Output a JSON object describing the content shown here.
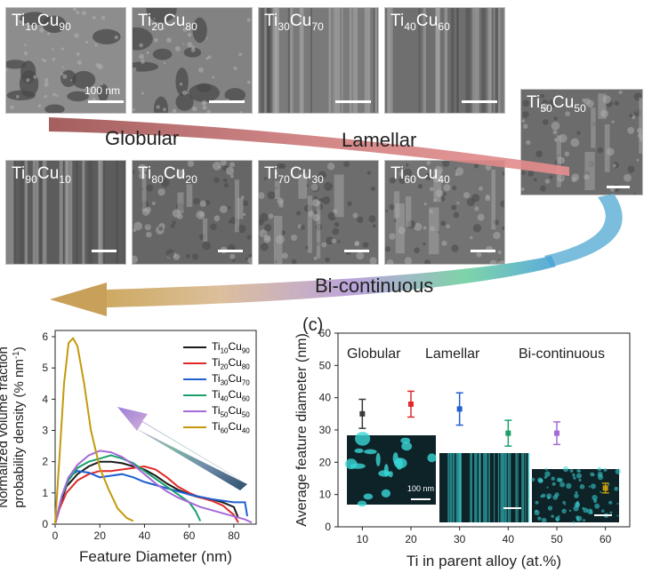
{
  "figure": {
    "tiles_top": [
      {
        "base1": "Ti",
        "sub1": "10",
        "base2": "Cu",
        "sub2": "90",
        "tone": "#8d8d8d"
      },
      {
        "base1": "Ti",
        "sub1": "20",
        "base2": "Cu",
        "sub2": "80",
        "tone": "#828282"
      },
      {
        "base1": "Ti",
        "sub1": "30",
        "base2": "Cu",
        "sub2": "70",
        "tone": "#7a7a7a"
      },
      {
        "base1": "Ti",
        "sub1": "40",
        "base2": "Cu",
        "sub2": "60",
        "tone": "#6f6f6f"
      }
    ],
    "tile_mid": {
      "base1": "Ti",
      "sub1": "50",
      "base2": "Cu",
      "sub2": "50",
      "tone": "#6c6c6c"
    },
    "tiles_bottom": [
      {
        "base1": "Ti",
        "sub1": "90",
        "base2": "Cu",
        "sub2": "10",
        "tone": "#5c5c5c"
      },
      {
        "base1": "Ti",
        "sub1": "80",
        "base2": "Cu",
        "sub2": "20",
        "tone": "#666666"
      },
      {
        "base1": "Ti",
        "sub1": "70",
        "base2": "Cu",
        "sub2": "30",
        "tone": "#6d6d6d"
      },
      {
        "base1": "Ti",
        "sub1": "60",
        "base2": "Cu",
        "sub2": "40",
        "tone": "#737373"
      }
    ],
    "scalebar_label": "100 nm",
    "morphology_labels": {
      "globular": "Globular",
      "lamellar": "Lamellar",
      "bicontinuous": "Bi-continuous"
    }
  },
  "chart_data": [
    {
      "type": "line",
      "ylabel_line1": "Normalized volume fraction",
      "ylabel_line2": "probability density (% nm",
      "ylabel_sup": "-1",
      "ylabel_end": ")",
      "xlabel": "Feature Diameter (nm)",
      "xlim": [
        0,
        90
      ],
      "ylim": [
        0,
        6.2
      ],
      "xticks": [
        0,
        20,
        40,
        60,
        80
      ],
      "yticks": [
        0,
        1,
        2,
        3,
        4,
        5,
        6
      ],
      "legend_position": "top-right",
      "series": [
        {
          "name": "Ti10Cu90",
          "base1": "Ti",
          "sub1": "10",
          "base2": "Cu",
          "sub2": "90",
          "color": "#1a1a1a",
          "points": [
            [
              0,
              0
            ],
            [
              2,
              0.6
            ],
            [
              5,
              1.2
            ],
            [
              10,
              1.6
            ],
            [
              15,
              1.85
            ],
            [
              20,
              2.0
            ],
            [
              25,
              2.0
            ],
            [
              30,
              1.95
            ],
            [
              35,
              1.85
            ],
            [
              40,
              1.75
            ],
            [
              45,
              1.55
            ],
            [
              50,
              1.3
            ],
            [
              55,
              1.1
            ],
            [
              60,
              0.95
            ],
            [
              65,
              0.85
            ],
            [
              70,
              0.8
            ],
            [
              75,
              0.7
            ],
            [
              80,
              0.55
            ],
            [
              82,
              0.2
            ]
          ]
        },
        {
          "name": "Ti20Cu80",
          "base1": "Ti",
          "sub1": "20",
          "base2": "Cu",
          "sub2": "80",
          "color": "#e02a2a",
          "points": [
            [
              0,
              0
            ],
            [
              2,
              0.5
            ],
            [
              5,
              1.0
            ],
            [
              10,
              1.4
            ],
            [
              15,
              1.6
            ],
            [
              20,
              1.7
            ],
            [
              25,
              1.7
            ],
            [
              30,
              1.75
            ],
            [
              35,
              1.8
            ],
            [
              40,
              1.85
            ],
            [
              45,
              1.75
            ],
            [
              50,
              1.5
            ],
            [
              55,
              1.2
            ],
            [
              60,
              1.0
            ],
            [
              65,
              0.85
            ],
            [
              70,
              0.75
            ],
            [
              75,
              0.6
            ],
            [
              80,
              0.3
            ],
            [
              82,
              0.05
            ]
          ]
        },
        {
          "name": "Ti30Cu70",
          "base1": "Ti",
          "sub1": "30",
          "base2": "Cu",
          "sub2": "70",
          "color": "#1f5fd0",
          "points": [
            [
              0,
              0
            ],
            [
              3,
              0.9
            ],
            [
              6,
              1.5
            ],
            [
              10,
              1.7
            ],
            [
              15,
              1.65
            ],
            [
              20,
              1.5
            ],
            [
              25,
              1.55
            ],
            [
              30,
              1.6
            ],
            [
              35,
              1.5
            ],
            [
              40,
              1.35
            ],
            [
              50,
              1.15
            ],
            [
              60,
              0.95
            ],
            [
              70,
              0.8
            ],
            [
              80,
              0.7
            ],
            [
              85,
              0.7
            ],
            [
              86,
              0.25
            ]
          ]
        },
        {
          "name": "Ti40Cu60",
          "base1": "Ti",
          "sub1": "40",
          "base2": "Cu",
          "sub2": "60",
          "color": "#1aa06a",
          "points": [
            [
              0,
              0
            ],
            [
              3,
              0.9
            ],
            [
              6,
              1.4
            ],
            [
              10,
              1.8
            ],
            [
              15,
              2.0
            ],
            [
              20,
              2.1
            ],
            [
              25,
              2.2
            ],
            [
              30,
              2.1
            ],
            [
              35,
              1.95
            ],
            [
              40,
              1.7
            ],
            [
              45,
              1.45
            ],
            [
              50,
              1.2
            ],
            [
              55,
              0.95
            ],
            [
              60,
              0.7
            ],
            [
              63,
              0.4
            ],
            [
              65,
              0.1
            ]
          ]
        },
        {
          "name": "Ti50Cu50",
          "base1": "Ti",
          "sub1": "50",
          "base2": "Cu",
          "sub2": "50",
          "color": "#a56ad8",
          "points": [
            [
              0,
              0
            ],
            [
              3,
              0.9
            ],
            [
              6,
              1.5
            ],
            [
              10,
              1.9
            ],
            [
              15,
              2.2
            ],
            [
              20,
              2.35
            ],
            [
              25,
              2.3
            ],
            [
              30,
              2.15
            ],
            [
              35,
              1.9
            ],
            [
              40,
              1.6
            ],
            [
              45,
              1.3
            ],
            [
              50,
              1.05
            ],
            [
              55,
              0.85
            ],
            [
              60,
              0.7
            ],
            [
              65,
              0.55
            ],
            [
              70,
              0.45
            ],
            [
              75,
              0.35
            ],
            [
              80,
              0.25
            ],
            [
              85,
              0.15
            ],
            [
              88,
              0.05
            ]
          ]
        },
        {
          "name": "Ti60Cu40",
          "base1": "Ti",
          "sub1": "60",
          "base2": "Cu",
          "sub2": "40",
          "color": "#c49a0c",
          "points": [
            [
              0,
              0
            ],
            [
              2,
              2.2
            ],
            [
              4,
              4.5
            ],
            [
              6,
              5.8
            ],
            [
              8,
              5.95
            ],
            [
              10,
              5.7
            ],
            [
              13,
              4.5
            ],
            [
              16,
              3.0
            ],
            [
              20,
              1.8
            ],
            [
              24,
              1.1
            ],
            [
              28,
              0.5
            ],
            [
              32,
              0.2
            ],
            [
              35,
              0.1
            ]
          ]
        }
      ]
    },
    {
      "type": "scatter",
      "panel_label": "(c)",
      "ylabel": "Average feature diameter (nm)",
      "xlabel": "Ti in parent alloy (at.%)",
      "xlim": [
        5,
        65
      ],
      "ylim": [
        0,
        60
      ],
      "xticks": [
        10,
        20,
        30,
        40,
        50,
        60
      ],
      "yticks": [
        0,
        10,
        20,
        30,
        40,
        50,
        60
      ],
      "points": [
        {
          "x": 10,
          "y": 35,
          "err": 4.5,
          "color": "#3a3a3a"
        },
        {
          "x": 20,
          "y": 38,
          "err": 4,
          "color": "#e02a2a"
        },
        {
          "x": 30,
          "y": 36.5,
          "err": 5,
          "color": "#1f5fd0"
        },
        {
          "x": 40,
          "y": 29,
          "err": 4,
          "color": "#1aa06a"
        },
        {
          "x": 50,
          "y": 29,
          "err": 3.5,
          "color": "#a56ad8"
        },
        {
          "x": 60,
          "y": 12,
          "err": 1.5,
          "color": "#c49a0c"
        }
      ],
      "region_labels": [
        "Globular",
        "Lamellar",
        "Bi-continuous"
      ],
      "inset_scalebar_label": "100 nm"
    }
  ]
}
